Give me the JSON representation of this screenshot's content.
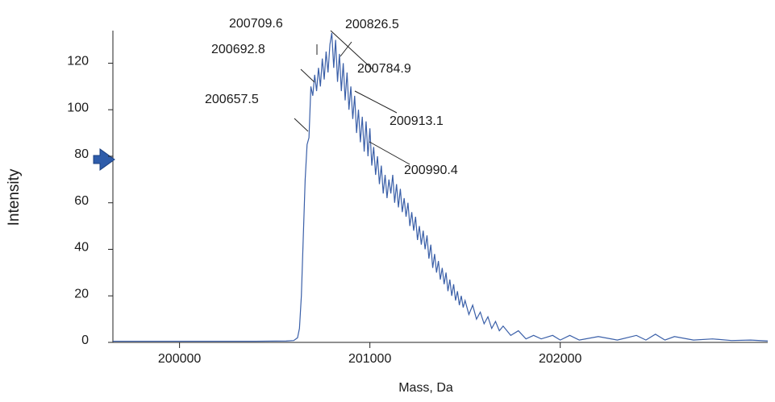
{
  "chart_data": {
    "type": "line",
    "x_label": "Mass, Da",
    "y_label": "Intensity",
    "color": "#3a5fa8",
    "xlim": [
      199650,
      203090
    ],
    "ylim": [
      0,
      134
    ],
    "xticks": [
      200000,
      201000,
      202000
    ],
    "yticks": [
      0,
      20,
      40,
      60,
      80,
      100,
      120
    ],
    "annotations": [
      "200709.6",
      "200826.5",
      "200692.8",
      "200784.9",
      "200657.5",
      "200913.1",
      "200990.4"
    ],
    "x": [
      199650,
      199800,
      200000,
      200200,
      200400,
      200560,
      200600,
      200620,
      200630,
      200640,
      200650,
      200660,
      200670,
      200680,
      200690,
      200700,
      200710,
      200720,
      200730,
      200740,
      200750,
      200760,
      200770,
      200780,
      200790,
      200800,
      200810,
      200820,
      200830,
      200840,
      200850,
      200860,
      200870,
      200880,
      200890,
      200900,
      200910,
      200920,
      200930,
      200940,
      200950,
      200960,
      200970,
      200980,
      200990,
      201000,
      201010,
      201020,
      201030,
      201040,
      201050,
      201060,
      201070,
      201080,
      201090,
      201100,
      201110,
      201120,
      201130,
      201140,
      201150,
      201160,
      201170,
      201180,
      201190,
      201200,
      201210,
      201220,
      201230,
      201240,
      201250,
      201260,
      201270,
      201280,
      201290,
      201300,
      201310,
      201320,
      201330,
      201340,
      201350,
      201360,
      201370,
      201380,
      201390,
      201400,
      201410,
      201420,
      201430,
      201440,
      201450,
      201460,
      201470,
      201480,
      201490,
      201500,
      201520,
      201540,
      201560,
      201580,
      201600,
      201620,
      201640,
      201660,
      201680,
      201700,
      201740,
      201780,
      201820,
      201860,
      201900,
      201960,
      202000,
      202050,
      202100,
      202200,
      202300,
      202400,
      202450,
      202500,
      202550,
      202600,
      202700,
      202800,
      202900,
      203000,
      203090
    ],
    "values": [
      0.5,
      0.5,
      0.5,
      0.5,
      0.5,
      0.6,
      0.8,
      2,
      6,
      20,
      45,
      70,
      85,
      88,
      110,
      106,
      115,
      108,
      118,
      110,
      122,
      113,
      125,
      116,
      128,
      133,
      118,
      130,
      112,
      124,
      108,
      120,
      104,
      116,
      100,
      110,
      96,
      106,
      90,
      100,
      86,
      97,
      82,
      95,
      80,
      92,
      76,
      84,
      72,
      80,
      68,
      76,
      64,
      72,
      62,
      70,
      64,
      72,
      60,
      68,
      58,
      66,
      56,
      62,
      54,
      60,
      50,
      56,
      48,
      54,
      44,
      50,
      42,
      48,
      40,
      46,
      36,
      42,
      32,
      38,
      30,
      35,
      27,
      32,
      25,
      30,
      22,
      27,
      20,
      25,
      18,
      22,
      16,
      20,
      15,
      18,
      12,
      16,
      10,
      13,
      8,
      11,
      6,
      9,
      5,
      7,
      3,
      5,
      1.5,
      3,
      1.5,
      3,
      1,
      3,
      1,
      2.5,
      1,
      3,
      1,
      3.5,
      1,
      2.5,
      1,
      1.5,
      0.8,
      1,
      0.6
    ]
  }
}
